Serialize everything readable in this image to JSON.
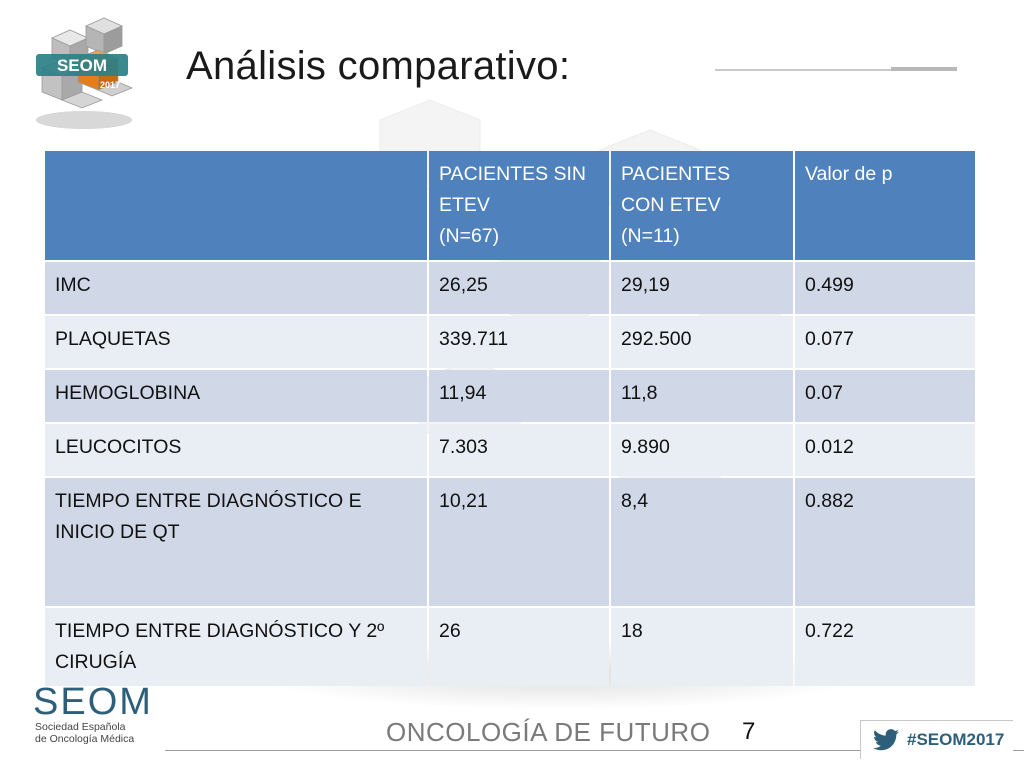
{
  "title": "Análisis comparativo:",
  "table": {
    "headers": [
      {
        "lines": []
      },
      {
        "lines": [
          "PACIENTES SIN",
          "ETEV",
          "(N=67)"
        ]
      },
      {
        "lines": [
          "PACIENTES",
          "CON ETEV",
          "(N=11)"
        ]
      },
      {
        "lines": [
          "Valor de p"
        ]
      }
    ],
    "rows": [
      {
        "label": [
          "IMC"
        ],
        "sin": "26,25",
        "con": "29,19",
        "p": "0.499"
      },
      {
        "label": [
          "PLAQUETAS"
        ],
        "sin": "339.711",
        "con": "292.500",
        "p": "0.077"
      },
      {
        "label": [
          "HEMOGLOBINA"
        ],
        "sin": "11,94",
        "con": "11,8",
        "p": "0.07"
      },
      {
        "label": [
          "LEUCOCITOS"
        ],
        "sin": "7.303",
        "con": "9.890",
        "p": "0.012"
      },
      {
        "label": [
          "TIEMPO ENTRE DIAGNÓSTICO E",
          "INICIO DE QT"
        ],
        "sin": "10,21",
        "con": "8,4",
        "p": "0.882"
      },
      {
        "label": [
          "TIEMPO ENTRE DIAGNÓSTICO Y 2º",
          "CIRUGÍA"
        ],
        "sin": "26",
        "con": "18",
        "p": "0.722"
      }
    ]
  },
  "logo": {
    "cube_text": "SEOM",
    "cube_year": "2017"
  },
  "footer": {
    "seom_word": "SEOM",
    "seom_sub_1": "Sociedad Española",
    "seom_sub_2": "de Oncología Médica",
    "slogan": "ONCOLOGÍA DE FUTURO",
    "page_number": "7",
    "hashtag": "#SEOM2017"
  },
  "colors": {
    "header": "#4f81bd",
    "row_odd": "#d0d8e8",
    "row_even": "#e9edf4",
    "brand": "#2d5f7a"
  }
}
